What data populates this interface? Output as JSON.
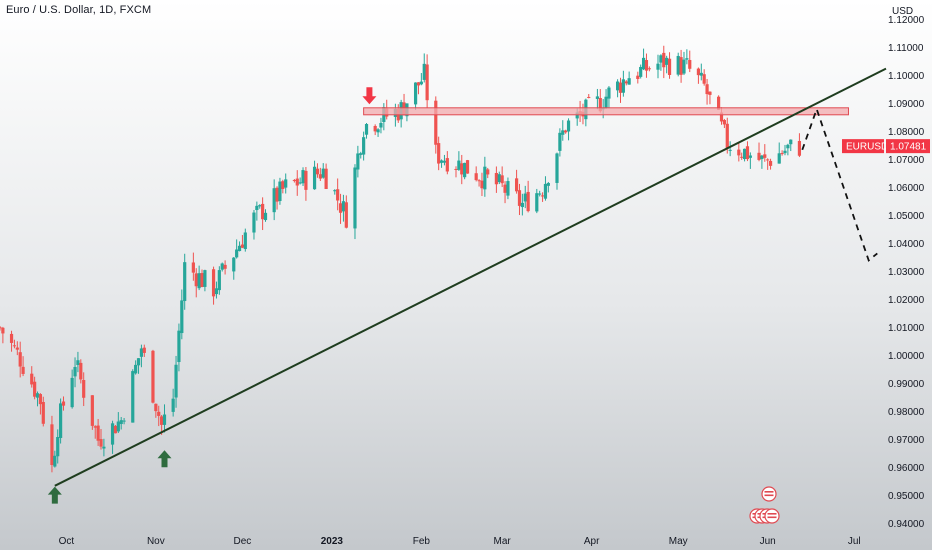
{
  "title": "Euro / U.S. Dollar, 1D, FXCM",
  "colors": {
    "up": "#26a69a",
    "down": "#ef5350",
    "trendline": "#1f3d1f",
    "zone_fill": "#f3a9ad",
    "zone_stroke": "#e04a52",
    "arrow_up": "#2e6b3e",
    "arrow_down": "#f23645",
    "tag_bg": "#f23645",
    "background_bottom": "#c4c8cc"
  },
  "chart_data": {
    "type": "candlestick",
    "symbol": "EURUSD",
    "last_price": 1.07481,
    "last_price_label": "1.07481",
    "currency": "USD",
    "ylim": [
      0.937,
      1.127
    ],
    "y_ticks": [
      0.94,
      0.95,
      0.96,
      0.97,
      0.98,
      0.99,
      1.0,
      1.01,
      1.02,
      1.03,
      1.04,
      1.05,
      1.06,
      1.07,
      1.08,
      1.09,
      1.1,
      1.11,
      1.12
    ],
    "y_tick_labels": [
      "0.94000",
      "0.95000",
      "0.96000",
      "0.97000",
      "0.98000",
      "0.99000",
      "1.00000",
      "1.01000",
      "1.02000",
      "1.03000",
      "1.04000",
      "1.05000",
      "1.06000",
      "1.07000",
      "1.08000",
      "1.09000",
      "1.10000",
      "1.11000",
      "1.12000"
    ],
    "x_range": [
      "2022-09-08",
      "2023-07-12"
    ],
    "x_ticks": [
      {
        "date": "2022-10-01",
        "label": "Oct"
      },
      {
        "date": "2022-11-01",
        "label": "Nov"
      },
      {
        "date": "2022-12-01",
        "label": "Dec"
      },
      {
        "date": "2023-01-01",
        "label": "2023",
        "bold": true
      },
      {
        "date": "2023-02-01",
        "label": "Feb"
      },
      {
        "date": "2023-03-01",
        "label": "Mar"
      },
      {
        "date": "2023-04-01",
        "label": "Apr"
      },
      {
        "date": "2023-05-01",
        "label": "May"
      },
      {
        "date": "2023-06-01",
        "label": "Jun"
      },
      {
        "date": "2023-07-01",
        "label": "Jul"
      }
    ],
    "series": [
      {
        "date": "2022-09-08",
        "close": 1.01
      },
      {
        "date": "2022-09-15",
        "close": 0.999
      },
      {
        "date": "2022-09-22",
        "close": 0.984
      },
      {
        "date": "2022-09-26",
        "close": 0.96
      },
      {
        "date": "2022-09-28",
        "close": 0.975
      },
      {
        "date": "2022-10-04",
        "close": 0.998
      },
      {
        "date": "2022-10-12",
        "close": 0.97
      },
      {
        "date": "2022-10-20",
        "close": 0.977
      },
      {
        "date": "2022-10-27",
        "close": 1.003
      },
      {
        "date": "2022-11-03",
        "close": 0.975
      },
      {
        "date": "2022-11-07",
        "close": 0.985
      },
      {
        "date": "2022-11-11",
        "close": 1.032
      },
      {
        "date": "2022-11-21",
        "close": 1.024
      },
      {
        "date": "2022-12-05",
        "close": 1.049
      },
      {
        "date": "2022-12-16",
        "close": 1.06
      },
      {
        "date": "2022-12-29",
        "close": 1.066
      },
      {
        "date": "2023-01-06",
        "close": 1.05
      },
      {
        "date": "2023-01-12",
        "close": 1.082
      },
      {
        "date": "2023-01-25",
        "close": 1.088
      },
      {
        "date": "2023-02-02",
        "close": 1.1
      },
      {
        "date": "2023-02-06",
        "close": 1.072
      },
      {
        "date": "2023-02-15",
        "close": 1.068
      },
      {
        "date": "2023-03-01",
        "close": 1.06
      },
      {
        "date": "2023-03-08",
        "close": 1.054
      },
      {
        "date": "2023-03-15",
        "close": 1.06
      },
      {
        "date": "2023-03-23",
        "close": 1.082
      },
      {
        "date": "2023-04-03",
        "close": 1.09
      },
      {
        "date": "2023-04-14",
        "close": 1.1
      },
      {
        "date": "2023-04-26",
        "close": 1.105
      },
      {
        "date": "2023-05-04",
        "close": 1.103
      },
      {
        "date": "2023-05-10",
        "close": 1.096
      },
      {
        "date": "2023-05-18",
        "close": 1.076
      },
      {
        "date": "2023-05-31",
        "close": 1.069
      },
      {
        "date": "2023-06-08",
        "close": 1.074
      },
      {
        "date": "2023-06-13",
        "close": 1.0748
      }
    ],
    "trendline": {
      "from": {
        "date": "2022-09-27",
        "price": 0.9535
      },
      "to": {
        "date": "2023-07-12",
        "price": 1.1025
      }
    },
    "resistance_zone": {
      "from_date": "2023-01-12",
      "to_date": "2023-06-29",
      "top": 1.0885,
      "bottom": 1.086
    },
    "projection": [
      {
        "date": "2023-06-13",
        "price": 1.0735
      },
      {
        "date": "2023-06-18",
        "price": 1.088
      },
      {
        "date": "2023-07-06",
        "price": 1.034
      },
      {
        "date": "2023-07-09",
        "price": 1.0365
      }
    ],
    "markers": [
      {
        "type": "arrow-up",
        "date": "2022-09-27",
        "price": 0.95
      },
      {
        "type": "arrow-up",
        "date": "2022-11-04",
        "price": 0.963
      },
      {
        "type": "arrow-down",
        "date": "2023-01-14",
        "price": 1.093
      }
    ]
  }
}
